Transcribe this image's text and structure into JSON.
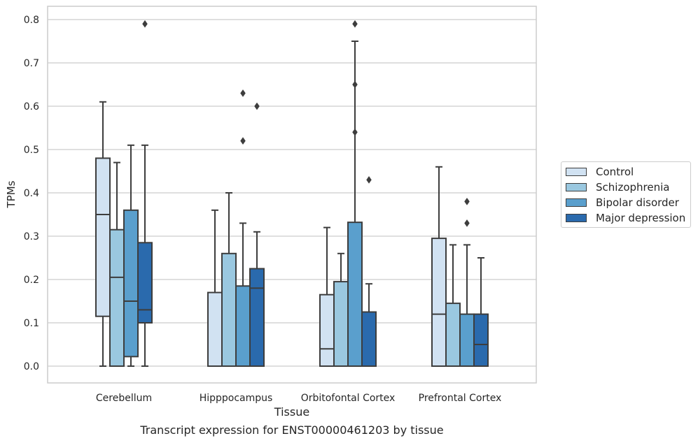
{
  "chart_data": {
    "type": "box",
    "xlabel": "Tissue",
    "ylabel": "TPMs",
    "ylim": [
      -0.04,
      0.83
    ],
    "yticks": [
      "0.0",
      "0.1",
      "0.2",
      "0.3",
      "0.4",
      "0.5",
      "0.6",
      "0.7",
      "0.8"
    ],
    "grid": true,
    "legend_position": "right",
    "categories": [
      "Cerebellum",
      "Hipppocampus",
      "Orbitofontal Cortex",
      "Prefrontal Cortex"
    ],
    "series": [
      {
        "name": "Control",
        "color": "#d1e2f2",
        "boxes": [
          {
            "whisker_low": 0.0,
            "q1": 0.115,
            "median": 0.35,
            "q3": 0.48,
            "whisker_high": 0.61,
            "outliers": []
          },
          {
            "whisker_low": 0.0,
            "q1": 0.0,
            "median": 0.0,
            "q3": 0.17,
            "whisker_high": 0.36,
            "outliers": []
          },
          {
            "whisker_low": 0.0,
            "q1": 0.0,
            "median": 0.04,
            "q3": 0.165,
            "whisker_high": 0.32,
            "outliers": []
          },
          {
            "whisker_low": 0.0,
            "q1": 0.0,
            "median": 0.12,
            "q3": 0.295,
            "whisker_high": 0.46,
            "outliers": []
          }
        ]
      },
      {
        "name": "Schizophrenia",
        "color": "#9ac8e0",
        "boxes": [
          {
            "whisker_low": 0.0,
            "q1": 0.0,
            "median": 0.205,
            "q3": 0.315,
            "whisker_high": 0.47,
            "outliers": []
          },
          {
            "whisker_low": 0.0,
            "q1": 0.0,
            "median": 0.0,
            "q3": 0.26,
            "whisker_high": 0.4,
            "outliers": []
          },
          {
            "whisker_low": 0.0,
            "q1": 0.0,
            "median": 0.0,
            "q3": 0.195,
            "whisker_high": 0.26,
            "outliers": []
          },
          {
            "whisker_low": 0.0,
            "q1": 0.0,
            "median": 0.0,
            "q3": 0.145,
            "whisker_high": 0.28,
            "outliers": []
          }
        ]
      },
      {
        "name": "Bipolar disorder",
        "color": "#5a9fcd",
        "boxes": [
          {
            "whisker_low": 0.0,
            "q1": 0.022,
            "median": 0.15,
            "q3": 0.36,
            "whisker_high": 0.51,
            "outliers": []
          },
          {
            "whisker_low": 0.0,
            "q1": 0.0,
            "median": 0.0,
            "q3": 0.185,
            "whisker_high": 0.33,
            "outliers": [
              0.52,
              0.63
            ]
          },
          {
            "whisker_low": 0.0,
            "q1": 0.0,
            "median": 0.0,
            "q3": 0.332,
            "whisker_high": 0.75,
            "outliers": [
              0.54,
              0.65,
              0.79
            ]
          },
          {
            "whisker_low": 0.0,
            "q1": 0.0,
            "median": 0.0,
            "q3": 0.12,
            "whisker_high": 0.28,
            "outliers": [
              0.33,
              0.38
            ]
          }
        ]
      },
      {
        "name": "Major depression",
        "color": "#2a6aad",
        "boxes": [
          {
            "whisker_low": 0.0,
            "q1": 0.1,
            "median": 0.13,
            "q3": 0.285,
            "whisker_high": 0.51,
            "outliers": [
              0.79
            ]
          },
          {
            "whisker_low": 0.0,
            "q1": 0.0,
            "median": 0.18,
            "q3": 0.225,
            "whisker_high": 0.31,
            "outliers": [
              0.6
            ]
          },
          {
            "whisker_low": 0.0,
            "q1": 0.0,
            "median": 0.0,
            "q3": 0.125,
            "whisker_high": 0.19,
            "outliers": [
              0.43
            ]
          },
          {
            "whisker_low": 0.0,
            "q1": 0.0,
            "median": 0.05,
            "q3": 0.12,
            "whisker_high": 0.25,
            "outliers": []
          }
        ]
      }
    ]
  },
  "caption": "Transcript expression for ENST00000461203 by tissue"
}
